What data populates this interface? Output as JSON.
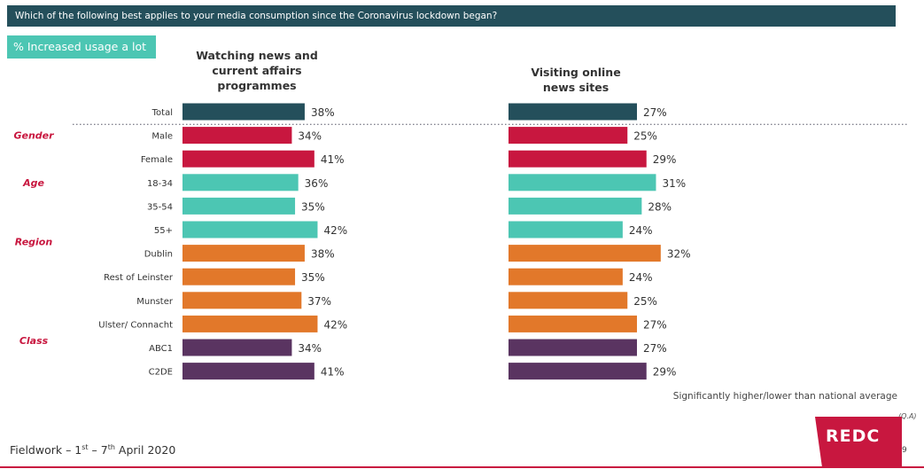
{
  "question": "Which of the following best applies to your media consumption since the Coronavirus lockdown began?",
  "metric_label": "% Increased usage a lot",
  "footnote": "Significantly higher/lower than national average",
  "qa_label": "(Q.A)",
  "fieldwork": {
    "prefix": "Fieldwork – 1",
    "sup1": "st",
    "middle": " – 7",
    "sup2": "th",
    "suffix": " April 2020"
  },
  "logo_text": "REDC",
  "page_number": "9",
  "colors": {
    "total": "#244f5b",
    "gender": "#c8173f",
    "age": "#4cc6b3",
    "region": "#e2782a",
    "class": "#5a3461",
    "group_label": "#c8173f"
  },
  "chart_data": {
    "type": "bar",
    "orientation": "horizontal",
    "categories": [
      "Total",
      "Male",
      "Female",
      "18-34",
      "35-54",
      "55+",
      "Dublin",
      "Rest of Leinster",
      "Munster",
      "Ulster/ Connacht",
      "ABC1",
      "C2DE"
    ],
    "category_groups": [
      "total",
      "gender",
      "gender",
      "age",
      "age",
      "age",
      "region",
      "region",
      "region",
      "region",
      "class",
      "class"
    ],
    "group_labels": [
      {
        "label": "Gender",
        "row": 1
      },
      {
        "label": "Age",
        "row": 3
      },
      {
        "label": "Region",
        "row": 5.5
      },
      {
        "label": "Class",
        "row": 9.7
      }
    ],
    "series": [
      {
        "name": "Watching news and current affairs programmes",
        "title_lines": [
          "Watching news and",
          "current affairs",
          "programmes"
        ],
        "values": [
          38,
          34,
          41,
          36,
          35,
          42,
          38,
          35,
          37,
          42,
          34,
          41
        ]
      },
      {
        "name": "Visiting online news sites",
        "title_lines": [
          "Visiting online",
          "news sites"
        ],
        "values": [
          27,
          25,
          29,
          31,
          28,
          24,
          32,
          24,
          25,
          27,
          27,
          29
        ]
      }
    ],
    "value_suffix": "%",
    "grid": false,
    "legend": "none"
  }
}
